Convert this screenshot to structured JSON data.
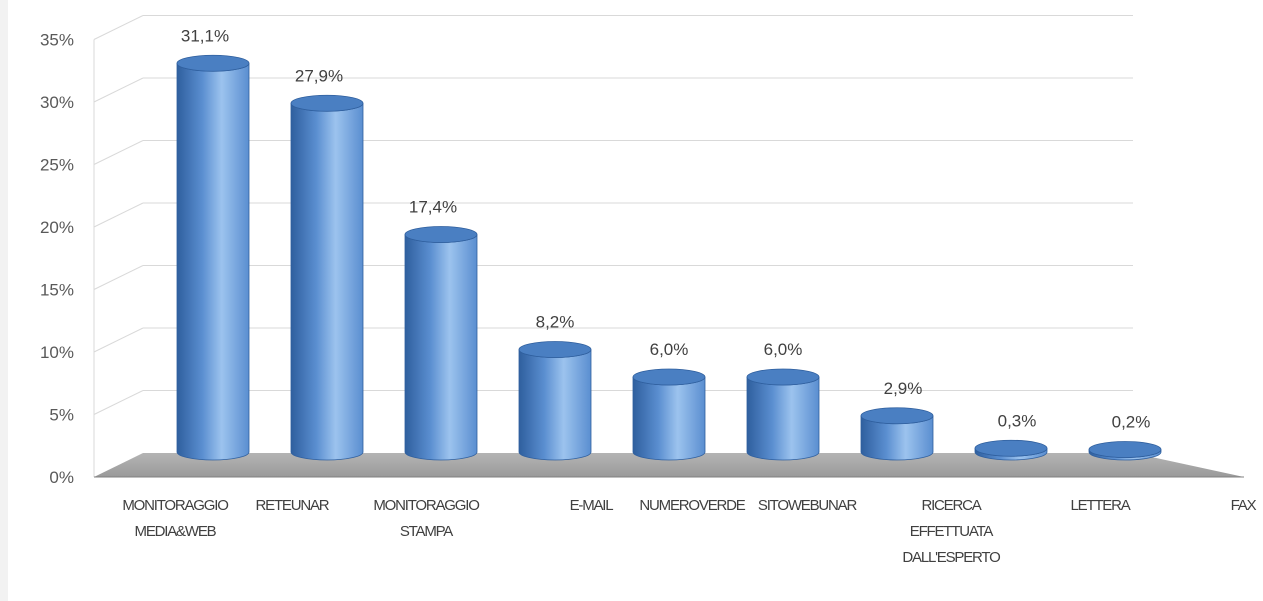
{
  "chart_data": {
    "type": "bar",
    "style": "3d-cylinder",
    "categories": [
      "MONITORAGGIO MEDIA&WEB",
      "RETEUNAR",
      "MONITORAGGIO STAMPA",
      "E-MAIL",
      "NUMEROVERDE",
      "SITOWEBUNAR",
      "RICERCA EFFETTUATA DALL'ESPERTO",
      "LETTERA",
      "FAX"
    ],
    "category_lines": [
      [
        "MONITORAGGIO",
        "MEDIA&WEB"
      ],
      [
        "RETEUNAR"
      ],
      [
        "MONITORAGGIO",
        "STAMPA"
      ],
      [
        "E-MAIL"
      ],
      [
        "NUMEROVERDE"
      ],
      [
        "SITOWEBUNAR"
      ],
      [
        "RICERCA",
        "EFFETTUATA",
        "DALL'ESPERTO"
      ],
      [
        "LETTERA"
      ],
      [
        "FAX"
      ]
    ],
    "values": [
      31.1,
      27.9,
      17.4,
      8.2,
      6.0,
      6.0,
      2.9,
      0.3,
      0.2
    ],
    "data_labels": [
      "31,1%",
      "27,9%",
      "17,4%",
      "8,2%",
      "6,0%",
      "6,0%",
      "2,9%",
      "0,3%",
      "0,2%"
    ],
    "ylim": [
      0,
      35
    ],
    "yticks": [
      0,
      5,
      10,
      15,
      20,
      25,
      30,
      35
    ],
    "ytick_labels": [
      "0%",
      "5%",
      "10%",
      "15%",
      "20%",
      "25%",
      "30%",
      "35%"
    ],
    "title": "",
    "xlabel": "",
    "ylabel": "",
    "grid": true,
    "legend": "none",
    "colors": {
      "bar_light": "#9cc3ee",
      "bar_mid": "#5a8ed0",
      "bar_dark": "#2f5f9e",
      "bar_top": "#4a7fc2",
      "floor": "#a6a6a6",
      "grid": "#d9d9d9"
    }
  }
}
